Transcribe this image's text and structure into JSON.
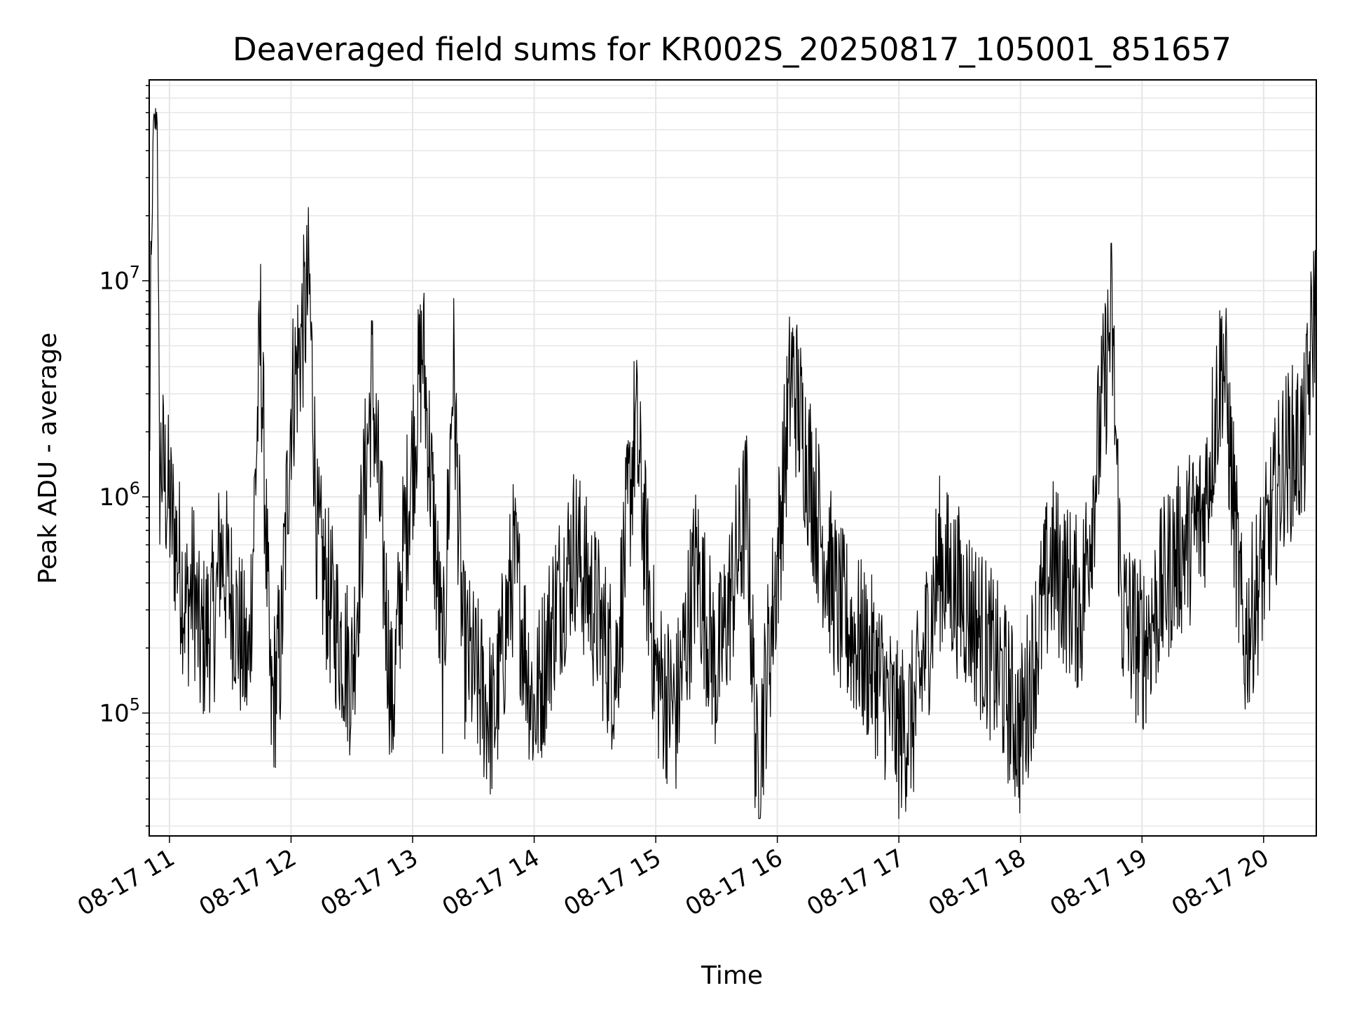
{
  "chart_data": {
    "type": "line",
    "title": "Deaveraged field sums for KR002S_20250817_105001_851657",
    "xlabel": "Time",
    "ylabel": "Peak ADU - average",
    "yscale": "log",
    "ylim": [
      27000,
      85000000
    ],
    "xlim": [
      "2025-08-17T10:50:00",
      "2025-08-17T20:26:00"
    ],
    "grid": true,
    "line_color": "#000000",
    "x_ticks": [
      "08-17 11",
      "08-17 12",
      "08-17 13",
      "08-17 14",
      "08-17 15",
      "08-17 16",
      "08-17 17",
      "08-17 18",
      "08-17 19",
      "08-17 20"
    ],
    "y_ticks": [
      {
        "value": 100000,
        "base": "10",
        "exp": "5"
      },
      {
        "value": 1000000,
        "base": "10",
        "exp": "6"
      },
      {
        "value": 10000000,
        "base": "10",
        "exp": "7"
      }
    ],
    "series": [
      {
        "x": [
          "2025-08-17T10:50:00",
          "2025-08-17T10:52:00",
          "2025-08-17T10:54:00",
          "2025-08-17T10:55:00",
          "2025-08-17T10:56:00",
          "2025-08-17T10:57:00",
          "2025-08-17T11:05:00",
          "2025-08-17T11:08:00",
          "2025-08-17T11:12:00",
          "2025-08-17T11:15:00",
          "2025-08-17T11:23:00",
          "2025-08-17T11:25:00",
          "2025-08-17T11:39:00",
          "2025-08-17T11:45:00",
          "2025-08-17T11:50:00",
          "2025-08-17T11:55:00",
          "2025-08-17T12:00:00",
          "2025-08-17T12:09:00",
          "2025-08-17T12:13:00",
          "2025-08-17T12:20:00",
          "2025-08-17T12:30:00",
          "2025-08-17T12:40:00",
          "2025-08-17T12:50:00",
          "2025-08-17T12:55:00",
          "2025-08-17T13:05:00",
          "2025-08-17T13:15:00",
          "2025-08-17T13:20:00",
          "2025-08-17T13:25:00",
          "2025-08-17T13:40:00",
          "2025-08-17T13:50:00",
          "2025-08-17T14:00:00",
          "2025-08-17T14:10:00",
          "2025-08-17T14:20:00",
          "2025-08-17T14:40:00",
          "2025-08-17T14:50:00",
          "2025-08-17T15:00:00",
          "2025-08-17T15:10:00",
          "2025-08-17T15:20:00",
          "2025-08-17T15:30:00",
          "2025-08-17T15:45:00",
          "2025-08-17T15:50:00",
          "2025-08-17T16:00:00",
          "2025-08-17T16:07:00",
          "2025-08-17T16:20:00",
          "2025-08-17T16:30:00",
          "2025-08-17T16:50:00",
          "2025-08-17T17:00:00",
          "2025-08-17T17:08:00",
          "2025-08-17T17:20:00",
          "2025-08-17T17:35:00",
          "2025-08-17T17:50:00",
          "2025-08-17T18:00:00",
          "2025-08-17T18:15:00",
          "2025-08-17T18:30:00",
          "2025-08-17T18:45:00",
          "2025-08-17T18:50:00",
          "2025-08-17T19:00:00",
          "2025-08-17T19:15:00",
          "2025-08-17T19:30:00",
          "2025-08-17T19:40:00",
          "2025-08-17T19:50:00",
          "2025-08-17T20:00:00",
          "2025-08-17T20:10:00",
          "2025-08-17T20:20:00",
          "2025-08-17T20:26:00"
        ],
        "y": [
          1500000,
          50000000,
          60000000,
          1200000,
          1500000,
          1300000,
          500000,
          300000,
          400000,
          200000,
          300000,
          600000,
          150000,
          5800000,
          100000,
          200000,
          2700000,
          9500000,
          600000,
          300000,
          150000,
          3500000,
          100000,
          500000,
          5000000,
          150000,
          4300000,
          200000,
          90000,
          500000,
          100000,
          300000,
          600000,
          150000,
          2200000,
          150000,
          100000,
          500000,
          150000,
          900000,
          50000,
          500000,
          3900000,
          800000,
          300000,
          150000,
          80000,
          100000,
          500000,
          300000,
          150000,
          80000,
          500000,
          300000,
          6900000,
          300000,
          200000,
          500000,
          800000,
          4800000,
          200000,
          500000,
          1500000,
          1800000,
          9800000
        ]
      }
    ]
  }
}
